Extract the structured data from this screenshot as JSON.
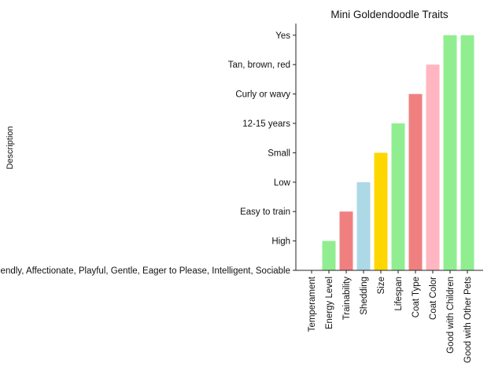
{
  "chart_data": {
    "type": "bar",
    "title": "Mini Goldendoodle Traits",
    "xlabel": "",
    "ylabel": "Description",
    "categories": [
      "Temperament",
      "Energy Level",
      "Trainability",
      "Shedding",
      "Size",
      "Lifespan",
      "Coat Type",
      "Coat Color",
      "Good with Children",
      "Good with Other Pets"
    ],
    "y_categories": [
      "Friendly, Affectionate, Playful, Gentle, Eager to Please, Intelligent, Sociable",
      "High",
      "Easy to train",
      "Low",
      "Small",
      "12-15 years",
      "Curly or wavy",
      "Tan, brown, red",
      "Yes"
    ],
    "values": [
      "Friendly, Affectionate, Playful, Gentle, Eager to Please, Intelligent, Sociable",
      "High",
      "Easy to train",
      "Low",
      "Small",
      "12-15 years",
      "Curly or wavy",
      "Tan, brown, red",
      "Yes",
      "Yes"
    ],
    "colors": [
      "#90ee90",
      "#90ee90",
      "#f08080",
      "#add8e6",
      "#ffd700",
      "#90ee90",
      "#f08080",
      "#ffb6c1",
      "#90ee90",
      "#90ee90"
    ],
    "grid": false,
    "legend": "none"
  }
}
